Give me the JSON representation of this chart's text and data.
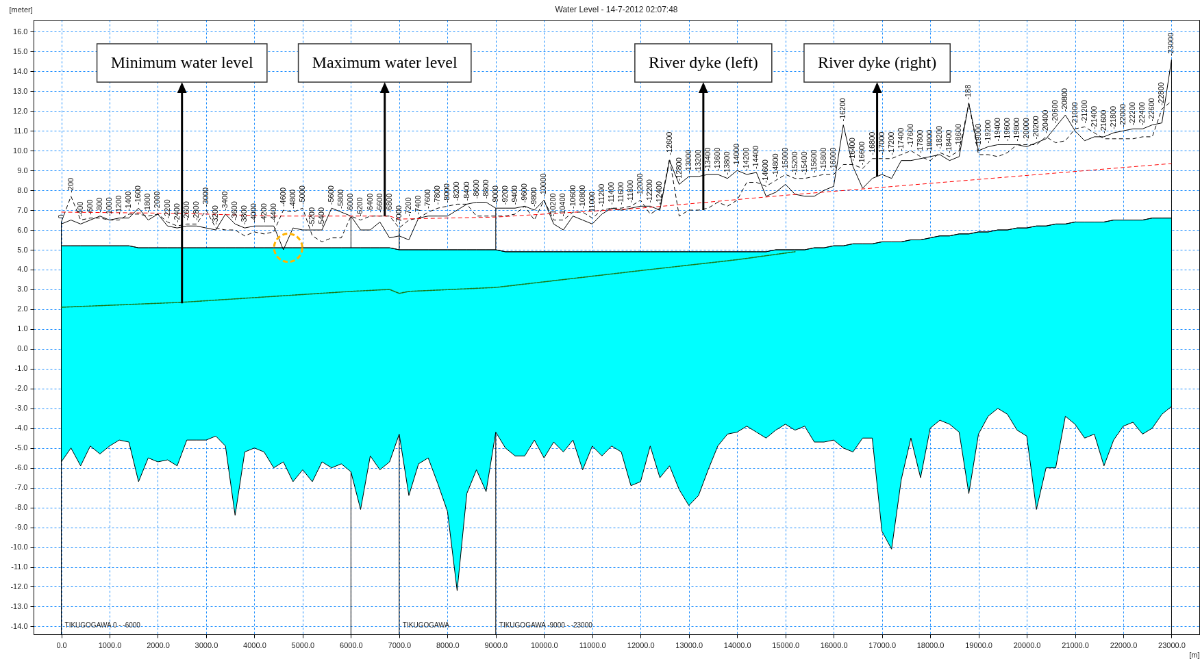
{
  "chart_data": {
    "type": "line",
    "title": "Water Level - 14-7-2012 02:07:48",
    "xlabel": "[m]",
    "ylabel": "[meter]",
    "xlim": [
      -575,
      23575
    ],
    "ylim": [
      -14.4,
      16.6
    ],
    "xticks": [
      {
        "value": 0,
        "label": "0.0"
      },
      {
        "value": 1000,
        "label": "1000.0"
      },
      {
        "value": 2000,
        "label": "2000.0"
      },
      {
        "value": 3000,
        "label": "3000.0"
      },
      {
        "value": 4000,
        "label": "4000.0"
      },
      {
        "value": 5000,
        "label": "5000.0"
      },
      {
        "value": 6000,
        "label": "6000.0"
      },
      {
        "value": 7000,
        "label": "7000.0"
      },
      {
        "value": 8000,
        "label": "8000.0"
      },
      {
        "value": 9000,
        "label": "9000.0"
      },
      {
        "value": 10000,
        "label": "10000.0"
      },
      {
        "value": 11000,
        "label": "11000.0"
      },
      {
        "value": 12000,
        "label": "12000.0"
      },
      {
        "value": 13000,
        "label": "13000.0"
      },
      {
        "value": 14000,
        "label": "14000.0"
      },
      {
        "value": 15000,
        "label": "15000.0"
      },
      {
        "value": 16000,
        "label": "16000.0"
      },
      {
        "value": 17000,
        "label": "17000.0"
      },
      {
        "value": 18000,
        "label": "18000.0"
      },
      {
        "value": 19000,
        "label": "19000.0"
      },
      {
        "value": 20000,
        "label": "20000.0"
      },
      {
        "value": 21000,
        "label": "21000.0"
      },
      {
        "value": 22000,
        "label": "22000.0"
      },
      {
        "value": 23000,
        "label": "23000.0"
      }
    ],
    "yticks": [
      {
        "value": -14,
        "label": "-14.0"
      },
      {
        "value": -13,
        "label": "-13.0"
      },
      {
        "value": -12,
        "label": "-12.0"
      },
      {
        "value": -11,
        "label": "-11.0"
      },
      {
        "value": -10,
        "label": "-10.0"
      },
      {
        "value": -9,
        "label": "-9.0"
      },
      {
        "value": -8,
        "label": "-8.0"
      },
      {
        "value": -7,
        "label": "-7.0"
      },
      {
        "value": -6,
        "label": "-6.0"
      },
      {
        "value": -5,
        "label": "-5.0"
      },
      {
        "value": -4,
        "label": "-4.0"
      },
      {
        "value": -3,
        "label": "-3.0"
      },
      {
        "value": -2,
        "label": "-2.0"
      },
      {
        "value": -1,
        "label": "-1.0"
      },
      {
        "value": 0,
        "label": "0.0"
      },
      {
        "value": 1,
        "label": "1.0"
      },
      {
        "value": 2,
        "label": "2.0"
      },
      {
        "value": 3,
        "label": "3.0"
      },
      {
        "value": 4,
        "label": "4.0"
      },
      {
        "value": 5,
        "label": "5.0"
      },
      {
        "value": 6,
        "label": "6.0"
      },
      {
        "value": 7,
        "label": "7.0"
      },
      {
        "value": 8,
        "label": "8.0"
      },
      {
        "value": 9,
        "label": "9.0"
      },
      {
        "value": 10,
        "label": "10.0"
      },
      {
        "value": 11,
        "label": "11.0"
      },
      {
        "value": 12,
        "label": "12.0"
      },
      {
        "value": 13,
        "label": "13.0"
      },
      {
        "value": 14,
        "label": "14.0"
      },
      {
        "value": 15,
        "label": "15.0"
      },
      {
        "value": 16,
        "label": "16.0"
      }
    ],
    "grid": true,
    "x": [
      0,
      200,
      400,
      600,
      800,
      1000,
      1200,
      1400,
      1600,
      1800,
      2000,
      2200,
      2400,
      2600,
      2800,
      3000,
      3200,
      3400,
      3600,
      3800,
      4000,
      4200,
      4400,
      4600,
      4800,
      5000,
      5200,
      5400,
      5600,
      5800,
      6000,
      6200,
      6400,
      6600,
      6800,
      7000,
      7200,
      7400,
      7600,
      7800,
      8000,
      8200,
      8400,
      8600,
      8800,
      9000,
      9200,
      9400,
      9600,
      9800,
      10000,
      10200,
      10400,
      10600,
      10800,
      11000,
      11200,
      11400,
      11600,
      11800,
      12000,
      12200,
      12400,
      12600,
      12800,
      13000,
      13200,
      13400,
      13600,
      13800,
      14000,
      14200,
      14400,
      14600,
      14800,
      15000,
      15200,
      15400,
      15600,
      15800,
      16000,
      16200,
      16400,
      16600,
      16800,
      17000,
      17200,
      17400,
      17600,
      17800,
      18000,
      18200,
      18400,
      18600,
      18800,
      19000,
      19200,
      19400,
      19600,
      19800,
      20000,
      20200,
      20400,
      20600,
      20800,
      21000,
      21200,
      21400,
      21600,
      21800,
      22000,
      22200,
      22400,
      22600,
      22800,
      23000
    ],
    "series": [
      {
        "color": "#000000",
        "upper": [
          5.2,
          5.2,
          5.2,
          5.2,
          5.2,
          5.2,
          5.2,
          5.2,
          5.1,
          5.1,
          5.1,
          5.1,
          5.1,
          5.1,
          5.1,
          5.1,
          5.1,
          5.1,
          5.1,
          5.1,
          5.1,
          5.1,
          5.1,
          5.1,
          5.1,
          5.1,
          5.1,
          5.1,
          5.1,
          5.1,
          5.1,
          5.1,
          5.1,
          5.1,
          5.1,
          5.0,
          5.0,
          5.0,
          5.0,
          5.0,
          5.0,
          5.0,
          5.0,
          5.0,
          5.0,
          5.0,
          4.9,
          4.9,
          4.9,
          4.9,
          4.9,
          4.9,
          4.9,
          4.9,
          4.9,
          4.9,
          4.9,
          4.9,
          4.9,
          4.9,
          4.9,
          4.9,
          4.9,
          4.9,
          4.9,
          4.9,
          4.9,
          4.9,
          4.9,
          4.9,
          4.9,
          4.9,
          4.9,
          4.9,
          5.0,
          5.0,
          5.0,
          5.0,
          5.1,
          5.1,
          5.2,
          5.2,
          5.3,
          5.3,
          5.3,
          5.4,
          5.4,
          5.4,
          5.5,
          5.5,
          5.6,
          5.7,
          5.7,
          5.8,
          5.8,
          5.9,
          5.9,
          6.0,
          6.0,
          6.1,
          6.1,
          6.2,
          6.2,
          6.3,
          6.3,
          6.4,
          6.4,
          6.4,
          6.4,
          6.5,
          6.5,
          6.5,
          6.5,
          6.6,
          6.6,
          6.6
        ],
        "values": [
          5.2,
          5.2,
          5.2,
          5.2,
          5.2,
          5.2,
          5.2,
          5.2,
          5.1,
          5.1,
          5.1,
          5.1,
          5.1,
          5.1,
          5.1,
          5.1,
          5.1,
          5.1,
          5.1,
          5.1,
          5.1,
          5.1,
          5.1,
          5.1,
          5.1,
          5.1,
          5.1,
          5.1,
          5.1,
          5.1,
          5.1,
          5.1,
          5.1,
          5.1,
          5.1,
          5.0,
          5.0,
          5.0,
          5.0,
          5.0,
          5.0,
          5.0,
          5.0,
          5.0,
          5.0,
          5.0,
          4.9,
          4.9,
          4.9,
          4.9,
          4.9,
          4.9,
          4.9,
          4.9,
          4.9,
          4.9,
          4.9,
          4.9,
          4.9,
          4.9,
          4.9,
          4.9,
          4.9,
          4.9,
          4.9,
          4.9,
          4.9,
          4.9,
          4.9,
          4.9,
          4.9,
          4.9,
          4.9,
          4.9,
          5.0,
          5.0,
          5.0,
          5.0,
          5.1,
          5.1,
          5.2,
          5.2,
          5.3,
          5.3,
          5.3,
          5.4,
          5.4,
          5.4,
          5.5,
          5.5,
          5.6,
          5.7,
          5.7,
          5.8,
          5.8,
          5.9,
          5.9,
          6.0,
          6.0,
          6.1,
          6.1,
          6.2,
          6.2,
          6.3,
          6.3,
          6.4,
          6.4,
          6.4,
          6.4,
          6.5,
          6.5,
          6.5,
          6.5,
          6.6,
          6.6,
          6.6
        ],
        "lower": [
          -5.7,
          -5.0,
          -5.9,
          -4.9,
          -5.3,
          -4.9,
          -4.6,
          -4.7,
          -6.7,
          -5.5,
          -5.7,
          -5.6,
          -5.9,
          -4.6,
          -4.6,
          -4.6,
          -4.4,
          -4.9,
          -8.4,
          -5.2,
          -5.0,
          -5.2,
          -6.0,
          -5.7,
          -6.7,
          -6.1,
          -6.7,
          -5.7,
          -6.0,
          -5.8,
          -6.2,
          -8.1,
          -5.4,
          -6.1,
          -5.7,
          -4.3,
          -7.4,
          -5.8,
          -5.5,
          -6.8,
          -8.2,
          -12.2,
          -7.3,
          -6.1,
          -7.2,
          -4.2,
          -5.0,
          -5.4,
          -5.4,
          -4.6,
          -5.5,
          -4.7,
          -5.2,
          -4.6,
          -6.1,
          -4.9,
          -5.4,
          -4.9,
          -5.2,
          -6.9,
          -6.7,
          -4.9,
          -6.5,
          -5.9,
          -7.1,
          -7.9,
          -7.4,
          -6.1,
          -4.9,
          -4.3,
          -4.2,
          -3.9,
          -4.2,
          -4.5,
          -4.1,
          -3.8,
          -4.1,
          -3.9,
          -4.7,
          -4.7,
          -4.6,
          -5.0,
          -5.2,
          -4.5,
          -4.5,
          -9.2,
          -10.1,
          -6.6,
          -4.5,
          -6.5,
          -4.0,
          -3.6,
          -3.8,
          -4.2,
          -7.3,
          -4.3,
          -3.4,
          -3.0,
          -3.3,
          -4.1,
          -4.4,
          -8.1,
          -6.0,
          -6.0,
          -3.4,
          -3.8,
          -4.5,
          -4.3,
          -5.9,
          -4.6,
          -3.9,
          -3.7,
          -4.3,
          -4.0,
          -3.3,
          -2.9
        ]
      },
      {
        "color": "#000000",
        "line_style": "solid",
        "values": [
          6.3,
          6.5,
          6.3,
          6.5,
          6.7,
          6.5,
          6.6,
          6.6,
          7.1,
          6.5,
          6.8,
          6.2,
          6.1,
          6.2,
          6.2,
          6.1,
          6.0,
          6.8,
          6.3,
          6.1,
          6.2,
          6.2,
          6.2,
          5.0,
          6.1,
          6.0,
          6.0,
          6.0,
          7.1,
          6.9,
          6.7,
          6.0,
          6.0,
          6.4,
          5.6,
          5.7,
          5.5,
          6.6,
          6.7,
          6.7,
          6.7,
          7.0,
          7.3,
          7.4,
          7.4,
          7.1,
          7.1,
          7.1,
          7.2,
          7.0,
          7.5,
          6.3,
          6.0,
          6.7,
          6.5,
          6.3,
          6.8,
          7.1,
          7.0,
          7.1,
          7.2,
          7.2,
          7.0,
          9.5,
          8.3,
          8.7,
          8.7,
          8.8,
          8.8,
          8.6,
          9.0,
          8.8,
          8.9,
          7.7,
          7.9,
          8.3,
          7.8,
          7.7,
          7.7,
          8.0,
          8.2,
          11.3,
          9.2,
          8.1,
          8.6,
          8.8,
          8.6,
          9.5,
          9.5,
          9.6,
          9.7,
          9.8,
          9.5,
          9.7,
          12.4,
          10.0,
          10.2,
          10.3,
          10.3,
          10.3,
          10.2,
          10.4,
          10.6,
          11.2,
          11.8,
          11.0,
          10.5,
          10.7,
          10.7,
          10.9,
          11.0,
          11.1,
          11.1,
          11.3,
          11.4,
          14.6
        ]
      },
      {
        "color": "#000000",
        "line_style": "dashed",
        "values": [
          6.4,
          7.7,
          6.5,
          6.6,
          6.6,
          6.5,
          6.5,
          6.8,
          6.8,
          6.7,
          6.8,
          6.4,
          6.2,
          6.3,
          6.3,
          7.0,
          6.1,
          6.0,
          6.0,
          5.7,
          5.9,
          5.8,
          5.9,
          7.0,
          6.9,
          7.1,
          5.7,
          5.4,
          5.6,
          5.6,
          6.7,
          6.5,
          6.7,
          6.7,
          6.7,
          6.1,
          6.5,
          6.6,
          6.9,
          7.1,
          7.2,
          7.3,
          7.3,
          6.7,
          6.7,
          6.7,
          6.7,
          6.8,
          7.2,
          6.5,
          7.5,
          6.5,
          6.5,
          6.9,
          6.9,
          6.6,
          7.0,
          7.1,
          7.1,
          7.2,
          7.5,
          6.8,
          7.1,
          9.6,
          6.7,
          7.0,
          7.0,
          7.1,
          7.4,
          7.2,
          7.5,
          8.4,
          8.4,
          8.2,
          8.5,
          8.8,
          8.6,
          8.6,
          8.7,
          8.8,
          8.8,
          9.3,
          9.3,
          9.1,
          9.6,
          9.6,
          9.6,
          9.8,
          10.0,
          9.7,
          9.5,
          9.9,
          9.7,
          10.0,
          12.4,
          9.8,
          9.8,
          9.7,
          9.9,
          10.3,
          10.3,
          10.3,
          10.7,
          10.4,
          10.5,
          11.1,
          11.2,
          10.9,
          10.6,
          10.6,
          10.6,
          10.6,
          10.7,
          10.7,
          12.1,
          12.5
        ]
      },
      {
        "color": "#ff0000",
        "line_style": "dashed",
        "x": [
          0,
          2000,
          3000,
          4400,
          6800,
          7000,
          9000,
          12000,
          15000,
          19000,
          23000
        ],
        "values": [
          6.9,
          6.85,
          6.8,
          6.7,
          6.7,
          6.55,
          6.65,
          7.1,
          7.75,
          8.55,
          9.35
        ]
      },
      {
        "color": "#1a7a1a",
        "line_style": "dotted",
        "x": [
          0,
          2500,
          6000,
          6800,
          7000,
          7200,
          9000,
          12000,
          14000,
          15200
        ],
        "values": [
          2.1,
          2.35,
          2.9,
          3.0,
          2.8,
          2.9,
          3.1,
          3.95,
          4.5,
          4.9
        ]
      },
      {
        "type": "scatter",
        "color": "#ffb300",
        "marker": "circle",
        "x": [
          4700
        ],
        "values": [
          5.1
        ]
      }
    ],
    "ref_lines": [
      {
        "axis": "x",
        "value": 0,
        "label": "TIKUGOGAWA  0 - -6000"
      },
      {
        "axis": "x",
        "value": 6000,
        "label": null
      },
      {
        "axis": "x",
        "value": 7000,
        "label": "TIKUGOGAWA"
      },
      {
        "axis": "x",
        "value": 9000,
        "label": "TIKUGOGAWA  -9000 - -23000"
      },
      {
        "axis": "x",
        "value": 23000,
        "label": null
      }
    ],
    "annotations": [
      {
        "text": "Minimum water level",
        "x": 2500,
        "y": 2.3
      },
      {
        "text": "Maximum water level",
        "x": 6700,
        "y": 6.7
      },
      {
        "text": "River dyke (left)",
        "x": 13300,
        "y": 7.0
      },
      {
        "text": "River dyke (right)",
        "x": 16900,
        "y": 8.7
      },
      {
        "text": "0",
        "x": 0,
        "y": 6.4
      },
      {
        "text": "-200",
        "x": 200,
        "y": 7.7
      },
      {
        "text": "-400",
        "x": 400,
        "y": 6.5
      },
      {
        "text": "-600",
        "x": 600,
        "y": 6.6
      },
      {
        "text": "-800",
        "x": 800,
        "y": 6.7
      },
      {
        "text": "-1000",
        "x": 1000,
        "y": 6.5
      },
      {
        "text": "-1200",
        "x": 1200,
        "y": 6.6
      },
      {
        "text": "-1400",
        "x": 1400,
        "y": 6.8
      },
      {
        "text": "-1600",
        "x": 1600,
        "y": 7.1
      },
      {
        "text": "-1800",
        "x": 1800,
        "y": 6.7
      },
      {
        "text": "-2000",
        "x": 2000,
        "y": 6.8
      },
      {
        "text": "-2200",
        "x": 2200,
        "y": 6.4
      },
      {
        "text": "-2400",
        "x": 2400,
        "y": 6.2
      },
      {
        "text": "-2600",
        "x": 2600,
        "y": 6.3
      },
      {
        "text": "-2800",
        "x": 2800,
        "y": 6.3
      },
      {
        "text": "-3000",
        "x": 3000,
        "y": 7.0
      },
      {
        "text": "-3200",
        "x": 3200,
        "y": 6.1
      },
      {
        "text": "-3400",
        "x": 3400,
        "y": 6.8
      },
      {
        "text": "-3600",
        "x": 3600,
        "y": 6.3
      },
      {
        "text": "-3800",
        "x": 3800,
        "y": 6.1
      },
      {
        "text": "-4000",
        "x": 4000,
        "y": 6.2
      },
      {
        "text": "-4200",
        "x": 4200,
        "y": 6.2
      },
      {
        "text": "-4400",
        "x": 4400,
        "y": 6.2
      },
      {
        "text": "-4600",
        "x": 4600,
        "y": 7.0
      },
      {
        "text": "-4800",
        "x": 4800,
        "y": 6.9
      },
      {
        "text": "-5000",
        "x": 5000,
        "y": 7.1
      },
      {
        "text": "-5200",
        "x": 5200,
        "y": 6.0
      },
      {
        "text": "-5400",
        "x": 5400,
        "y": 6.0
      },
      {
        "text": "-5600",
        "x": 5600,
        "y": 7.1
      },
      {
        "text": "-5800",
        "x": 5800,
        "y": 6.9
      },
      {
        "text": "-6000",
        "x": 6000,
        "y": 6.7
      },
      {
        "text": "-6200",
        "x": 6200,
        "y": 6.5
      },
      {
        "text": "-6400",
        "x": 6400,
        "y": 6.7
      },
      {
        "text": "-6600",
        "x": 6600,
        "y": 6.7
      },
      {
        "text": "-6800",
        "x": 6800,
        "y": 6.7
      },
      {
        "text": "-7000",
        "x": 7000,
        "y": 6.1
      },
      {
        "text": "-7200",
        "x": 7200,
        "y": 6.5
      },
      {
        "text": "-7400",
        "x": 7400,
        "y": 6.6
      },
      {
        "text": "-7600",
        "x": 7600,
        "y": 6.9
      },
      {
        "text": "-7800",
        "x": 7800,
        "y": 7.1
      },
      {
        "text": "-8000",
        "x": 8000,
        "y": 7.2
      },
      {
        "text": "-8200",
        "x": 8200,
        "y": 7.3
      },
      {
        "text": "-8400",
        "x": 8400,
        "y": 7.3
      },
      {
        "text": "-8600",
        "x": 8600,
        "y": 7.4
      },
      {
        "text": "-8800",
        "x": 8800,
        "y": 7.4
      },
      {
        "text": "-9000",
        "x": 9000,
        "y": 7.1
      },
      {
        "text": "-9200",
        "x": 9200,
        "y": 7.1
      },
      {
        "text": "-9400",
        "x": 9400,
        "y": 7.1
      },
      {
        "text": "-9600",
        "x": 9600,
        "y": 7.2
      },
      {
        "text": "-9800",
        "x": 9800,
        "y": 7.0
      },
      {
        "text": "-10000",
        "x": 10000,
        "y": 7.5
      },
      {
        "text": "-10200",
        "x": 10200,
        "y": 6.5
      },
      {
        "text": "-10400",
        "x": 10400,
        "y": 6.5
      },
      {
        "text": "-10600",
        "x": 10600,
        "y": 6.9
      },
      {
        "text": "-10800",
        "x": 10800,
        "y": 6.9
      },
      {
        "text": "-11000",
        "x": 11000,
        "y": 6.6
      },
      {
        "text": "-11200",
        "x": 11200,
        "y": 7.0
      },
      {
        "text": "-11400",
        "x": 11400,
        "y": 7.1
      },
      {
        "text": "-11600",
        "x": 11600,
        "y": 7.1
      },
      {
        "text": "-11800",
        "x": 11800,
        "y": 7.2
      },
      {
        "text": "-12000",
        "x": 12000,
        "y": 7.5
      },
      {
        "text": "-12200",
        "x": 12200,
        "y": 7.2
      },
      {
        "text": "-12400",
        "x": 12400,
        "y": 7.1
      },
      {
        "text": "-12600",
        "x": 12600,
        "y": 9.6
      },
      {
        "text": "-12800",
        "x": 12800,
        "y": 8.3
      },
      {
        "text": "-13000",
        "x": 13000,
        "y": 8.7
      },
      {
        "text": "-13200",
        "x": 13200,
        "y": 8.7
      },
      {
        "text": "-13400",
        "x": 13400,
        "y": 8.8
      },
      {
        "text": "-13600",
        "x": 13600,
        "y": 8.8
      },
      {
        "text": "-13800",
        "x": 13800,
        "y": 8.6
      },
      {
        "text": "-14000",
        "x": 14000,
        "y": 9.0
      },
      {
        "text": "-14200",
        "x": 14200,
        "y": 8.8
      },
      {
        "text": "-14400",
        "x": 14400,
        "y": 8.9
      },
      {
        "text": "-14600",
        "x": 14600,
        "y": 8.2
      },
      {
        "text": "-14800",
        "x": 14800,
        "y": 8.5
      },
      {
        "text": "-15000",
        "x": 15000,
        "y": 8.8
      },
      {
        "text": "-15200",
        "x": 15200,
        "y": 8.6
      },
      {
        "text": "-15400",
        "x": 15400,
        "y": 8.6
      },
      {
        "text": "-15600",
        "x": 15600,
        "y": 8.7
      },
      {
        "text": "-15800",
        "x": 15800,
        "y": 8.8
      },
      {
        "text": "-16000",
        "x": 16000,
        "y": 8.8
      },
      {
        "text": "-16200",
        "x": 16200,
        "y": 11.3
      },
      {
        "text": "-16400",
        "x": 16400,
        "y": 9.3
      },
      {
        "text": "-16600",
        "x": 16600,
        "y": 9.1
      },
      {
        "text": "-16800",
        "x": 16800,
        "y": 9.6
      },
      {
        "text": "-17000",
        "x": 17000,
        "y": 9.6
      },
      {
        "text": "-17200",
        "x": 17200,
        "y": 9.6
      },
      {
        "text": "-17400",
        "x": 17400,
        "y": 9.8
      },
      {
        "text": "-17600",
        "x": 17600,
        "y": 10.0
      },
      {
        "text": "-17800",
        "x": 17800,
        "y": 9.7
      },
      {
        "text": "-18000",
        "x": 18000,
        "y": 9.7
      },
      {
        "text": "-18200",
        "x": 18200,
        "y": 9.9
      },
      {
        "text": "-18400",
        "x": 18400,
        "y": 9.7
      },
      {
        "text": "-18600",
        "x": 18600,
        "y": 10.0
      },
      {
        "text": "-188",
        "x": 18800,
        "y": 12.4
      },
      {
        "text": "-19000",
        "x": 19000,
        "y": 10.0
      },
      {
        "text": "-19200",
        "x": 19200,
        "y": 10.2
      },
      {
        "text": "-19400",
        "x": 19400,
        "y": 10.3
      },
      {
        "text": "-19600",
        "x": 19600,
        "y": 10.3
      },
      {
        "text": "-19800",
        "x": 19800,
        "y": 10.3
      },
      {
        "text": "-20000",
        "x": 20000,
        "y": 10.3
      },
      {
        "text": "-20200",
        "x": 20200,
        "y": 10.4
      },
      {
        "text": "-20400",
        "x": 20400,
        "y": 10.7
      },
      {
        "text": "-20600",
        "x": 20600,
        "y": 11.2
      },
      {
        "text": "-20800",
        "x": 20800,
        "y": 11.8
      },
      {
        "text": "-21000",
        "x": 21000,
        "y": 11.1
      },
      {
        "text": "-21200",
        "x": 21200,
        "y": 11.2
      },
      {
        "text": "-21400",
        "x": 21400,
        "y": 10.9
      },
      {
        "text": "-21600",
        "x": 21600,
        "y": 10.7
      },
      {
        "text": "-21800",
        "x": 21800,
        "y": 10.9
      },
      {
        "text": "-22000",
        "x": 22000,
        "y": 11.0
      },
      {
        "text": "-22200",
        "x": 22200,
        "y": 11.1
      },
      {
        "text": "-22400",
        "x": 22400,
        "y": 11.1
      },
      {
        "text": "-22600",
        "x": 22600,
        "y": 11.3
      },
      {
        "text": "-22800",
        "x": 22800,
        "y": 12.1
      },
      {
        "text": "-23000",
        "x": 23000,
        "y": 14.6
      }
    ]
  }
}
